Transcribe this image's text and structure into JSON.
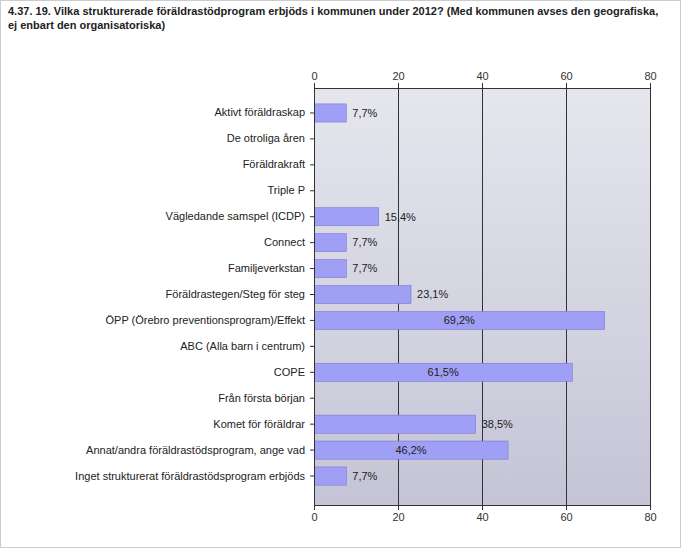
{
  "chart_data": {
    "type": "bar",
    "orientation": "horizontal",
    "title": "4.37. 19. Vilka strukturerade föräldrastödprogram erbjöds i kommunen under 2012? (Med kommunen avses den geografiska, ej enbart den organisatoriska)",
    "categories": [
      "Aktivt föräldraskap",
      "De otroliga åren",
      "Föräldrakraft",
      "Triple P",
      "Vägledande samspel (ICDP)",
      "Connect",
      "Familjeverkstan",
      "Föräldrastegen/Steg för steg",
      "ÖPP (Örebro preventionsprogram)/Effekt",
      "ABC (Alla barn i centrum)",
      "COPE",
      "Från första början",
      "Komet för föräldrar",
      "Annat/andra föräldrastödsprogram, ange vad",
      "Inget strukturerat föräldrastödsprogram erbjöds"
    ],
    "values": [
      7.7,
      0,
      0,
      0,
      15.4,
      7.7,
      7.7,
      23.1,
      69.2,
      0,
      61.5,
      0,
      38.5,
      46.2,
      7.7
    ],
    "value_labels": [
      "7,7%",
      null,
      null,
      null,
      "15,4%",
      "7,7%",
      "7,7%",
      "23,1%",
      "69,2%",
      null,
      "61,5%",
      null,
      "38,5%",
      "46,2%",
      "7,7%"
    ],
    "data_labels": true,
    "color": "#9f9ff5",
    "xlim": [
      0,
      80
    ],
    "xticks": [
      0,
      20,
      40,
      60,
      80
    ],
    "grid": true
  }
}
